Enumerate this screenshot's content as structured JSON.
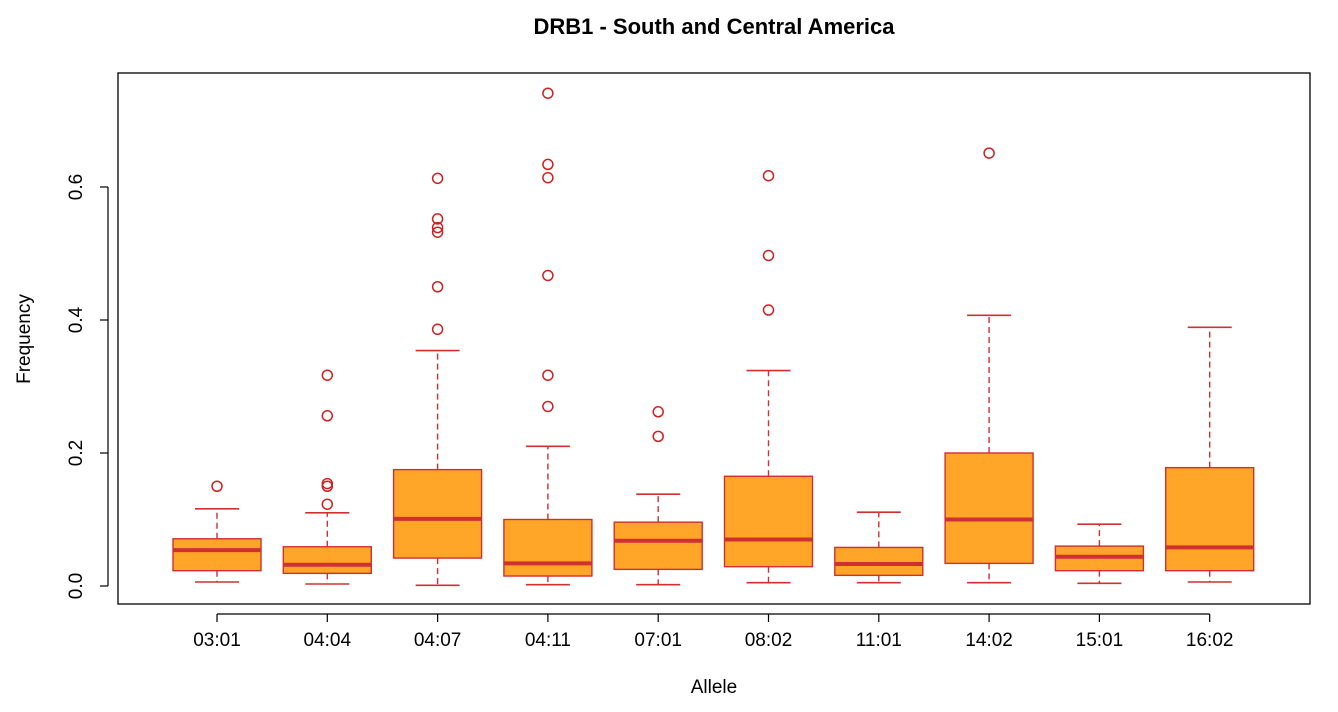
{
  "chart_data": {
    "type": "boxplot",
    "title": "DRB1 - South and Central America",
    "xlabel": "Allele",
    "ylabel": "Frequency",
    "ylim": [
      0,
      0.75
    ],
    "yticks": [
      "0.0",
      "0.2",
      "0.4",
      "0.6"
    ],
    "ytick_values": [
      0,
      0.2,
      0.4,
      0.6
    ],
    "grid": false,
    "colors": {
      "box_fill": "#FFA629",
      "stroke": "#D03030",
      "outlier": "#D02020",
      "frame": "#000000"
    },
    "categories": [
      "03:01",
      "04:04",
      "04:07",
      "04:11",
      "07:01",
      "08:02",
      "11:01",
      "14:02",
      "15:01",
      "16:02"
    ],
    "boxes": [
      {
        "category": "03:01",
        "whisker_low": 0.006,
        "q1": 0.023,
        "median": 0.054,
        "q3": 0.071,
        "whisker_high": 0.116,
        "outliers": [
          0.15
        ]
      },
      {
        "category": "04:04",
        "whisker_low": 0.003,
        "q1": 0.019,
        "median": 0.032,
        "q3": 0.059,
        "whisker_high": 0.11,
        "outliers": [
          0.123,
          0.15,
          0.154,
          0.256,
          0.317
        ]
      },
      {
        "category": "04:07",
        "whisker_low": 0.001,
        "q1": 0.042,
        "median": 0.101,
        "q3": 0.175,
        "whisker_high": 0.354,
        "outliers": [
          0.386,
          0.45,
          0.532,
          0.539,
          0.552,
          0.613
        ]
      },
      {
        "category": "04:11",
        "whisker_low": 0.002,
        "q1": 0.015,
        "median": 0.034,
        "q3": 0.1,
        "whisker_high": 0.21,
        "outliers": [
          0.27,
          0.317,
          0.467,
          0.614,
          0.634,
          0.741
        ]
      },
      {
        "category": "07:01",
        "whisker_low": 0.002,
        "q1": 0.025,
        "median": 0.068,
        "q3": 0.096,
        "whisker_high": 0.138,
        "outliers": [
          0.225,
          0.262
        ]
      },
      {
        "category": "08:02",
        "whisker_low": 0.005,
        "q1": 0.029,
        "median": 0.07,
        "q3": 0.165,
        "whisker_high": 0.324,
        "outliers": [
          0.415,
          0.497,
          0.617
        ]
      },
      {
        "category": "11:01",
        "whisker_low": 0.005,
        "q1": 0.016,
        "median": 0.033,
        "q3": 0.058,
        "whisker_high": 0.111,
        "outliers": []
      },
      {
        "category": "14:02",
        "whisker_low": 0.005,
        "q1": 0.034,
        "median": 0.1,
        "q3": 0.2,
        "whisker_high": 0.407,
        "outliers": [
          0.651
        ]
      },
      {
        "category": "15:01",
        "whisker_low": 0.004,
        "q1": 0.023,
        "median": 0.044,
        "q3": 0.06,
        "whisker_high": 0.093,
        "outliers": []
      },
      {
        "category": "16:02",
        "whisker_low": 0.006,
        "q1": 0.023,
        "median": 0.058,
        "q3": 0.178,
        "whisker_high": 0.389,
        "outliers": []
      }
    ]
  }
}
